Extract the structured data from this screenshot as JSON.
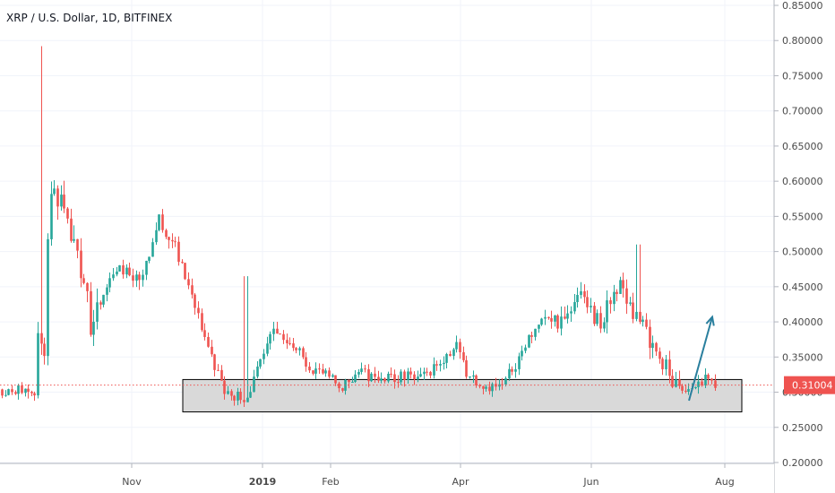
{
  "header": {
    "title": "XRP / U.S. Dollar, 1D, BITFINEX"
  },
  "chart_data": {
    "type": "candlestick",
    "symbol": "XRP / U.S. Dollar",
    "interval": "1D",
    "exchange": "BITFINEX",
    "ylim": [
      0.2,
      0.85
    ],
    "y_ticks": [
      "0.85000",
      "0.80000",
      "0.75000",
      "0.70000",
      "0.65000",
      "0.60000",
      "0.55000",
      "0.50000",
      "0.45000",
      "0.40000",
      "0.35000",
      "0.30000",
      "0.25000",
      "0.20000"
    ],
    "x_ticks": [
      "Nov",
      "2019",
      "Feb",
      "Apr",
      "Jun",
      "Aug"
    ],
    "last_price": "0.31004",
    "last_price_value": 0.31004,
    "colors": {
      "up": "#26a69a",
      "down": "#ef5350",
      "last_price": "#ef5350",
      "zone_fill": "#d9d9d9",
      "zone_border": "#000000",
      "arrow": "#2a7f9e"
    },
    "support_zone": {
      "low": 0.272,
      "high": 0.318
    },
    "arrow_annotation": {
      "from": 0.288,
      "to": 0.407,
      "direction": "up"
    },
    "anchors": [
      [
        0.35,
        0.258
      ],
      [
        0.283,
        0.275
      ],
      [
        0.571,
        0.571
      ],
      [
        0.552,
        0.594
      ],
      [
        0.54,
        0.494
      ],
      [
        0.47,
        0.47
      ],
      [
        0.475,
        0.458
      ],
      [
        0.384,
        0.384
      ],
      [
        0.472,
        0.481
      ],
      [
        0.468,
        0.458
      ],
      [
        0.559,
        0.531
      ],
      [
        0.527,
        0.503
      ],
      [
        0.439,
        0.449
      ],
      [
        0.359,
        0.371
      ],
      [
        0.3,
        0.3
      ],
      [
        0.292,
        0.292
      ],
      [
        0.389,
        0.382
      ],
      [
        0.378,
        0.374
      ],
      [
        0.344,
        0.332
      ],
      [
        0.322,
        0.32
      ],
      [
        0.303,
        0.312
      ],
      [
        0.327,
        0.332
      ],
      [
        0.322,
        0.314
      ],
      [
        0.317,
        0.327
      ],
      [
        0.322,
        0.316
      ],
      [
        0.366,
        0.369
      ],
      [
        0.332,
        0.325
      ],
      [
        0.304,
        0.316
      ],
      [
        0.302,
        0.312
      ],
      [
        0.419,
        0.422
      ],
      [
        0.392,
        0.394
      ],
      [
        0.427,
        0.444
      ],
      [
        0.398,
        0.392
      ],
      [
        0.436,
        0.474
      ],
      [
        0.408,
        0.397
      ],
      [
        0.341,
        0.337
      ],
      [
        0.301,
        0.292
      ],
      [
        0.318,
        0.317
      ],
      [
        0.31,
        0.31
      ]
    ]
  }
}
